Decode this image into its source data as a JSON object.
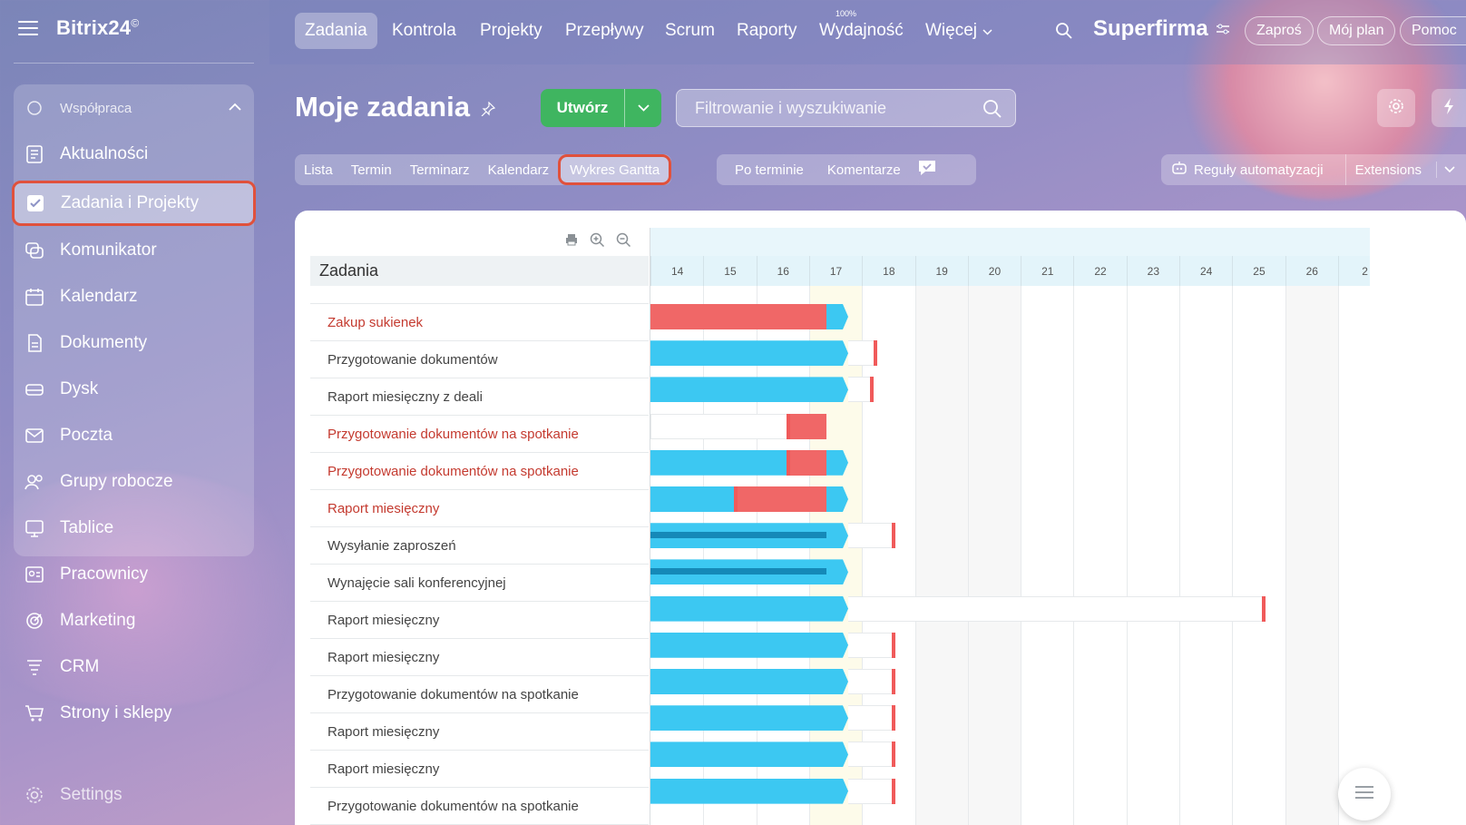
{
  "brand": {
    "name": "Bitrix24",
    "mark": "©"
  },
  "sidebar": {
    "header": "Współpraca",
    "items": [
      {
        "label": "Aktualności",
        "icon": "news-icon"
      },
      {
        "label": "Zadania i Projekty",
        "icon": "checkbox-icon"
      },
      {
        "label": "Komunikator",
        "icon": "chat-icon"
      },
      {
        "label": "Kalendarz",
        "icon": "calendar-icon"
      },
      {
        "label": "Dokumenty",
        "icon": "document-icon"
      },
      {
        "label": "Dysk",
        "icon": "drive-icon"
      },
      {
        "label": "Poczta",
        "icon": "mail-icon"
      },
      {
        "label": "Grupy robocze",
        "icon": "group-icon"
      },
      {
        "label": "Tablice",
        "icon": "board-icon"
      },
      {
        "label": "Pracownicy",
        "icon": "employees-icon"
      },
      {
        "label": "Marketing",
        "icon": "marketing-icon"
      },
      {
        "label": "CRM",
        "icon": "crm-icon"
      },
      {
        "label": "Strony i sklepy",
        "icon": "cart-icon"
      },
      {
        "label": "Settings",
        "icon": "gear-icon"
      }
    ]
  },
  "topnav": {
    "tabs": [
      "Zadania",
      "Kontrola",
      "Projekty",
      "Przepływy",
      "Scrum",
      "Raporty",
      "Wydajność",
      "Więcej"
    ],
    "perf_badge": "100%",
    "company": "Superfirma",
    "buttons": [
      "Zaproś",
      "Mój plan",
      "Pomoc"
    ]
  },
  "page": {
    "title": "Moje zadania",
    "create_label": "Utwórz",
    "search_placeholder": "Filtrowanie i wyszukiwanie"
  },
  "views": {
    "tabs": [
      "Lista",
      "Termin",
      "Terminarz",
      "Kalendarz",
      "Wykres Gantta"
    ],
    "active": "Wykres Gantta",
    "sort": [
      "Po terminie",
      "Komentarze"
    ],
    "automation": "Reguły automatyzacji",
    "extensions": "Extensions"
  },
  "gantt": {
    "tasks_header": "Zadania",
    "days": [
      "14",
      "15",
      "16",
      "17",
      "18",
      "19",
      "20",
      "21",
      "22",
      "23",
      "24",
      "25",
      "26",
      "2"
    ],
    "tasks": [
      {
        "name": "Zakup sukienek",
        "overdue": true
      },
      {
        "name": "Przygotowanie dokumentów",
        "overdue": false
      },
      {
        "name": "Raport miesięczny z deali",
        "overdue": false
      },
      {
        "name": "Przygotowanie dokumentów na spotkanie",
        "overdue": true
      },
      {
        "name": "Przygotowanie dokumentów na spotkanie",
        "overdue": true
      },
      {
        "name": "Raport miesięczny",
        "overdue": true
      },
      {
        "name": "Wysyłanie zaproszeń",
        "overdue": false
      },
      {
        "name": "Wynajęcie sali konferencyjnej",
        "overdue": false
      },
      {
        "name": "Raport miesięczny",
        "overdue": false
      },
      {
        "name": "Raport miesięczny",
        "overdue": false
      },
      {
        "name": "Przygotowanie dokumentów na spotkanie",
        "overdue": false
      },
      {
        "name": "Raport miesięczny",
        "overdue": false
      },
      {
        "name": "Raport miesięczny",
        "overdue": false
      },
      {
        "name": "Przygotowanie dokumentów na spotkanie",
        "overdue": false
      }
    ]
  },
  "colors": {
    "accent_green": "#3fb560",
    "overdue_red": "#f06767",
    "bar_blue": "#3cc8f2",
    "highlight": "#e0513c"
  }
}
